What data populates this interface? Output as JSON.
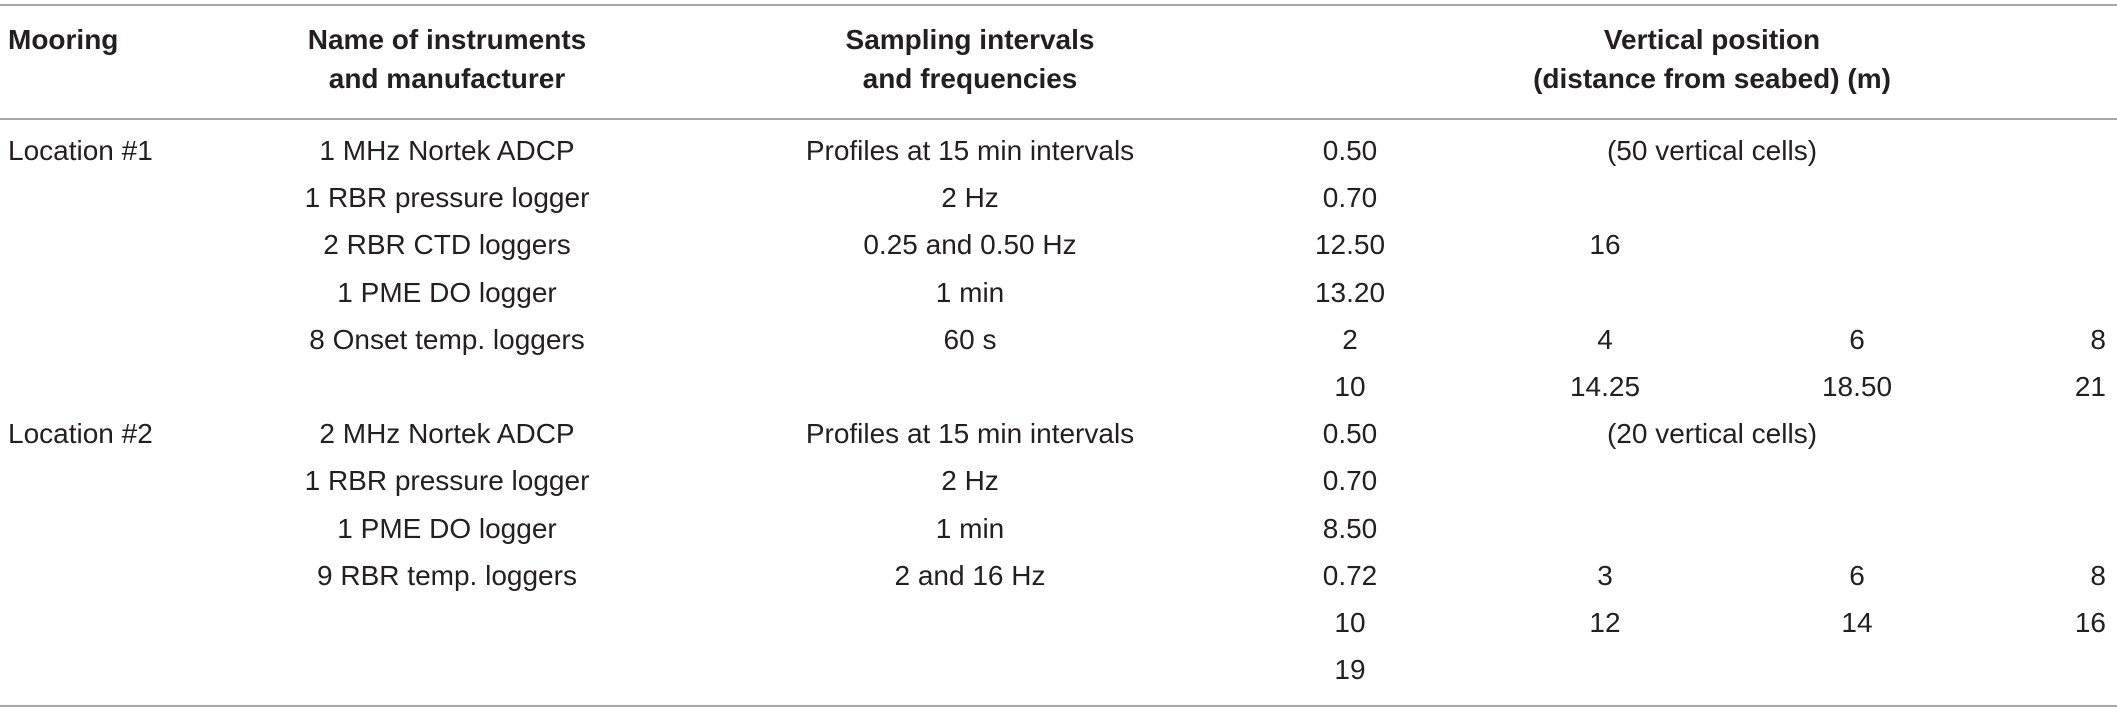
{
  "table": {
    "headers": {
      "mooring": "Mooring",
      "instruments": [
        "Name of instruments",
        "and manufacturer"
      ],
      "sampling": [
        "Sampling intervals",
        "and frequencies"
      ],
      "vertical": [
        "Vertical position",
        "(distance from seabed) (m)"
      ]
    },
    "rows": [
      {
        "mooring": "Location #1",
        "instrument": "1 MHz Nortek ADCP",
        "sampling": "Profiles at 15 min intervals",
        "positions": [
          "0.50",
          "",
          "(50 vertical cells)",
          ""
        ]
      },
      {
        "mooring": "",
        "instrument": "1 RBR pressure logger",
        "sampling": "2 Hz",
        "positions": [
          "0.70",
          "",
          "",
          ""
        ]
      },
      {
        "mooring": "",
        "instrument": "2 RBR CTD loggers",
        "sampling": "0.25 and 0.50 Hz",
        "positions": [
          "12.50",
          "16",
          "",
          ""
        ]
      },
      {
        "mooring": "",
        "instrument": "1 PME DO logger",
        "sampling": "1 min",
        "positions": [
          "13.20",
          "",
          "",
          ""
        ]
      },
      {
        "mooring": "",
        "instrument": "8 Onset temp. loggers",
        "sampling": "60 s",
        "positions": [
          "2",
          "4",
          "6",
          "8"
        ]
      },
      {
        "mooring": "",
        "instrument": "",
        "sampling": "",
        "positions": [
          "10",
          "14.25",
          "18.50",
          "21"
        ]
      },
      {
        "mooring": "Location #2",
        "instrument": "2 MHz Nortek ADCP",
        "sampling": "Profiles at 15 min intervals",
        "positions": [
          "0.50",
          "",
          "(20 vertical cells)",
          ""
        ]
      },
      {
        "mooring": "",
        "instrument": "1 RBR pressure logger",
        "sampling": "2 Hz",
        "positions": [
          "0.70",
          "",
          "",
          ""
        ]
      },
      {
        "mooring": "",
        "instrument": "1 PME DO logger",
        "sampling": "1 min",
        "positions": [
          "8.50",
          "",
          "",
          ""
        ]
      },
      {
        "mooring": "",
        "instrument": "9 RBR temp. loggers",
        "sampling": "2 and 16 Hz",
        "positions": [
          "0.72",
          "3",
          "6",
          "8"
        ]
      },
      {
        "mooring": "",
        "instrument": "",
        "sampling": "",
        "positions": [
          "10",
          "12",
          "14",
          "16"
        ]
      },
      {
        "mooring": "",
        "instrument": "",
        "sampling": "",
        "positions": [
          "19",
          "",
          "",
          ""
        ]
      }
    ]
  }
}
